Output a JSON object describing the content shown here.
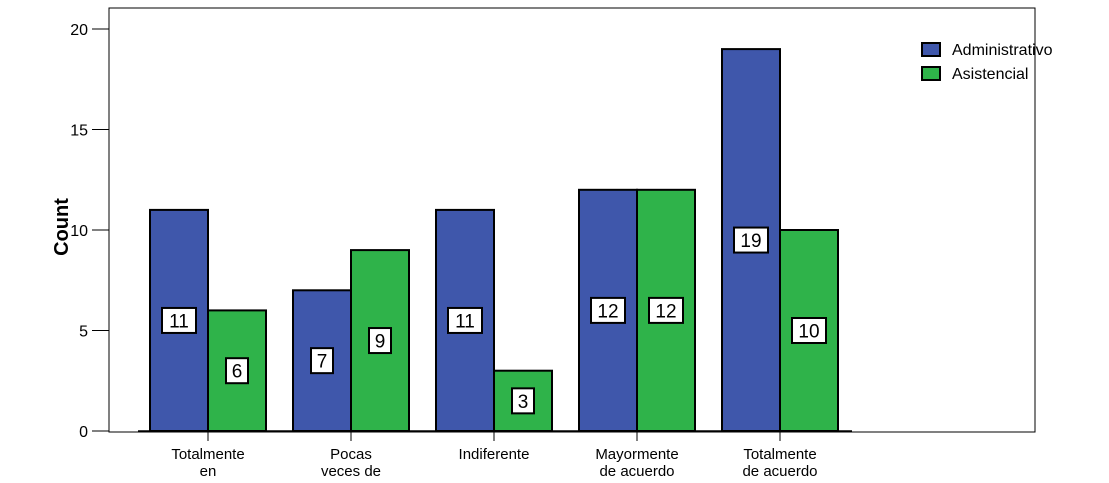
{
  "chart_data": {
    "type": "bar",
    "categories": [
      [
        "Totalmente",
        "en"
      ],
      [
        "Pocas",
        "veces de"
      ],
      [
        "Indiferente"
      ],
      [
        "Mayormente",
        "de acuerdo"
      ],
      [
        "Totalmente",
        "de acuerdo"
      ]
    ],
    "series": [
      {
        "name": "Administrativo",
        "color": "#3f57ab",
        "values": [
          11,
          7,
          11,
          12,
          19
        ]
      },
      {
        "name": "Asistencial",
        "color": "#2fb34a",
        "values": [
          6,
          9,
          3,
          12,
          10
        ]
      }
    ],
    "ylabel": "Count",
    "xlabel": "",
    "title": "",
    "ylim": [
      0,
      21
    ],
    "yticks": [
      0,
      5,
      10,
      15,
      20
    ],
    "grid": false,
    "legend_position": "top-right",
    "data_labels": true
  }
}
